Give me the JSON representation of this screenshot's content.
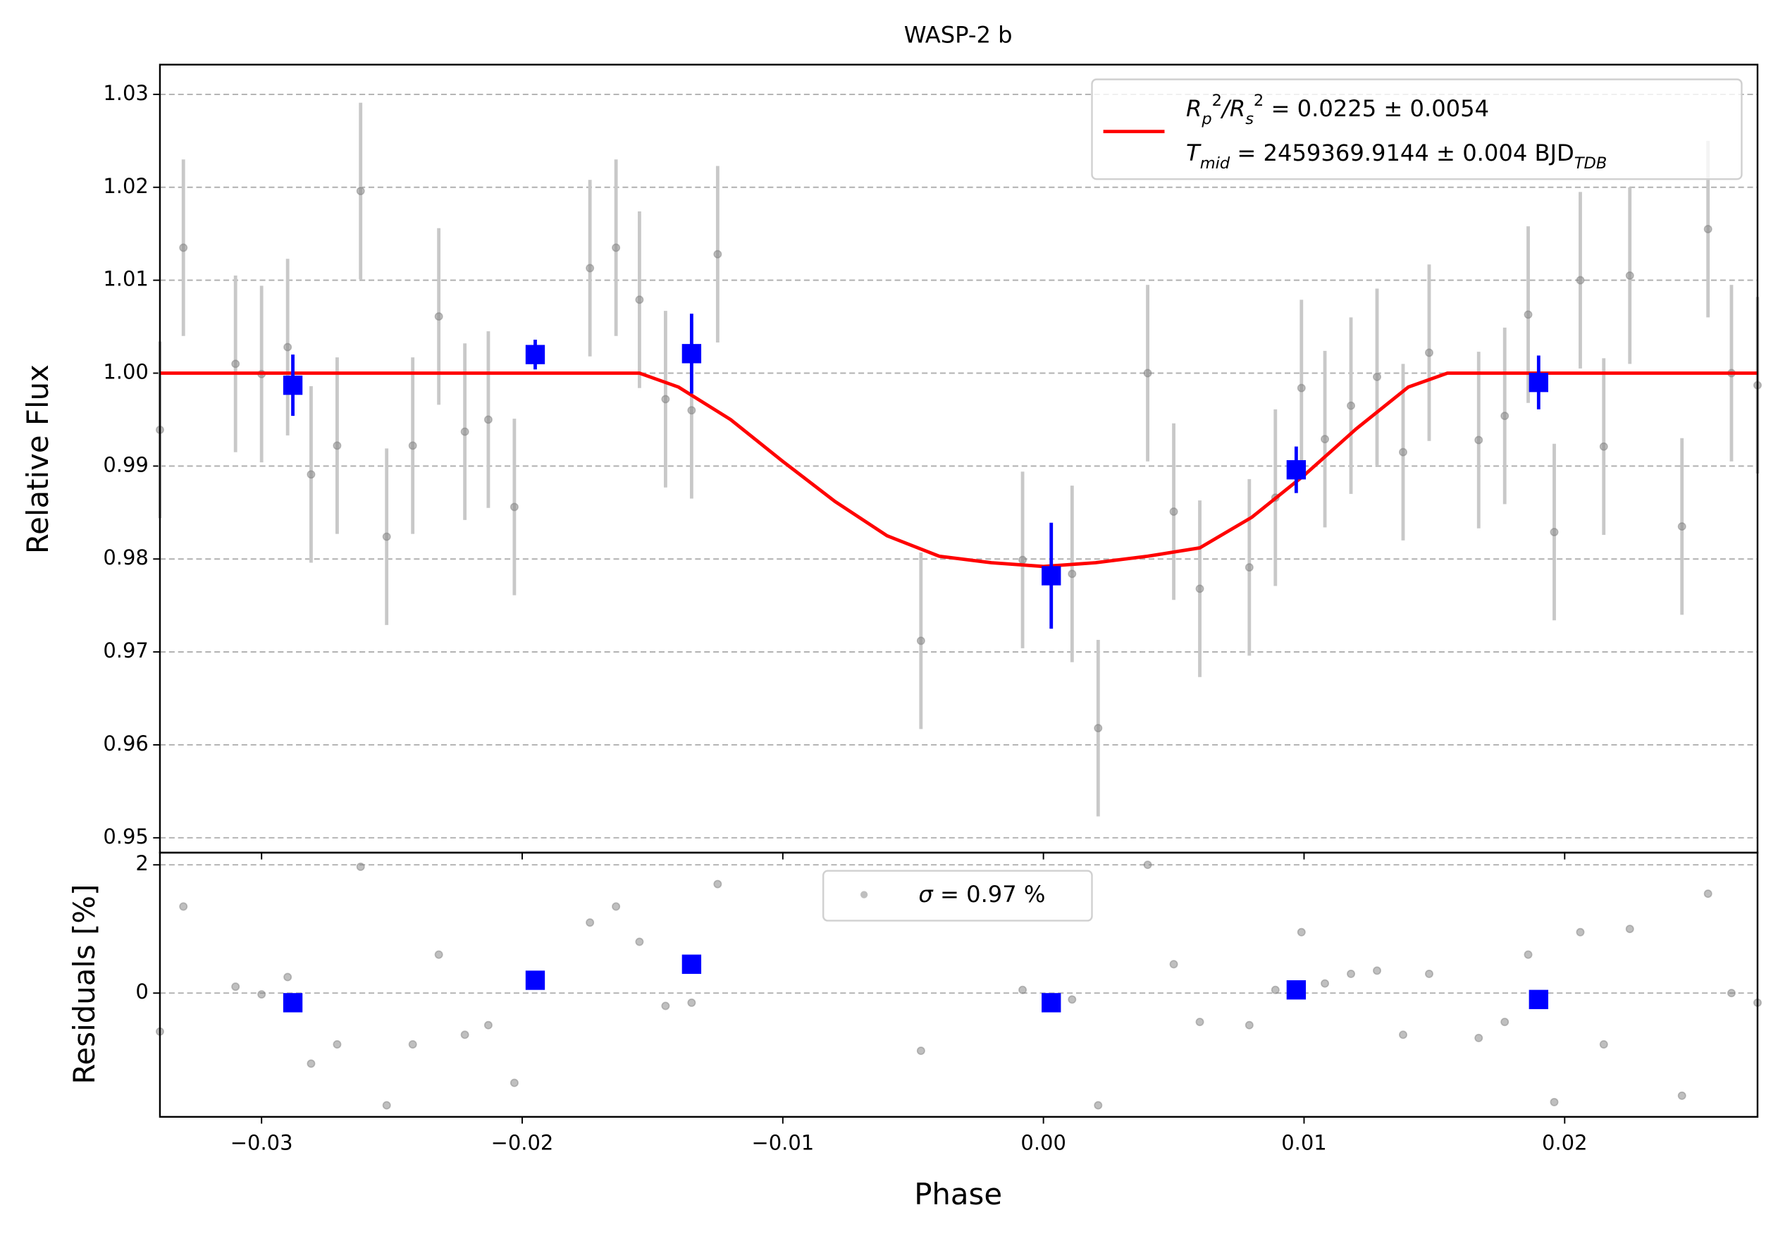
{
  "chart_data": [
    {
      "type": "errorbar",
      "title": "WASP-2 b",
      "y_label": "Relative Flux",
      "xlim": [
        -0.0339,
        0.0274
      ],
      "xticks": [
        -0.03,
        -0.02,
        -0.01,
        0,
        0.01,
        0.02
      ],
      "ylim": [
        0.9484,
        1.0332
      ],
      "yticks": [
        0.95,
        0.96,
        0.97,
        0.98,
        0.99,
        {
          "value": 1,
          "label": "1.00"
        },
        1.01,
        1.02,
        1.03
      ],
      "grid": true,
      "series": [
        {
          "mark": "point",
          "color": "#808080",
          "errorcolor": "#c8c8c8",
          "error": 0.0095,
          "x": [
            -0.0339,
            -0.033,
            -0.031,
            -0.03,
            -0.029,
            -0.0281,
            -0.0271,
            -0.0262,
            -0.0252,
            -0.0242,
            -0.0232,
            -0.0222,
            -0.0213,
            -0.0203,
            -0.0174,
            -0.0164,
            -0.0155,
            -0.0145,
            -0.0135,
            -0.0125,
            -0.0047,
            -0.0008,
            0.0011,
            0.0021,
            0.004,
            0.005,
            0.006,
            0.0079,
            0.0089,
            0.0099,
            0.0108,
            0.0118,
            0.0128,
            0.0138,
            0.0148,
            0.0167,
            0.0177,
            0.0186,
            0.0196,
            0.0206,
            0.0215,
            0.0225,
            0.0245,
            0.0255,
            0.0264,
            0.0274
          ],
          "values": [
            0.9939,
            1.0135,
            1.001,
            0.9999,
            1.0028,
            0.9891,
            0.9922,
            1.0196,
            0.9824,
            0.9922,
            1.0061,
            0.9937,
            0.995,
            0.9856,
            1.0113,
            1.0135,
            1.0079,
            0.9972,
            0.996,
            1.0128,
            0.9712,
            0.9799,
            0.9784,
            0.9618,
            1.0,
            0.9851,
            0.9768,
            0.9791,
            0.9866,
            0.9984,
            0.9929,
            0.9965,
            0.9996,
            0.9915,
            1.0022,
            0.9928,
            0.9954,
            1.0063,
            0.9829,
            1.01,
            0.9921,
            1.0105,
            0.9835,
            1.0155,
            1.0,
            0.9987
          ]
        },
        {
          "mark": "line",
          "color": "#ff0000",
          "x": [
            -0.0339,
            -0.0155,
            -0.014,
            -0.012,
            -0.01,
            -0.008,
            -0.006,
            -0.004,
            -0.002,
            0,
            0.002,
            0.004,
            0.006,
            0.008,
            0.01,
            0.012,
            0.014,
            0.0155,
            0.0274
          ],
          "values": [
            1,
            1,
            0.9985,
            0.995,
            0.9905,
            0.9862,
            0.9825,
            0.9803,
            0.9796,
            0.9792,
            0.9796,
            0.9803,
            0.9812,
            0.9845,
            0.989,
            0.994,
            0.9985,
            1,
            1
          ],
          "legend_lines": [
            [
              {
                "text": "R",
                "style": "italic"
              },
              {
                "text": "p",
                "style": "sub"
              },
              {
                "text": "2",
                "style": "sup"
              },
              {
                "text": "/",
                "style": "italic"
              },
              {
                "text": "R",
                "style": "italic"
              },
              {
                "text": "s",
                "style": "sub"
              },
              {
                "text": "2",
                "style": "sup"
              },
              {
                "text": " = 0.0225 ± 0.0054",
                "style": "normal"
              }
            ],
            [
              {
                "text": "T",
                "style": "italic"
              },
              {
                "text": "mid",
                "style": "sub"
              },
              {
                "text": " = 2459369.9144 ± 0.004 BJD",
                "style": "normal"
              },
              {
                "text": "TDB",
                "style": "sub"
              }
            ]
          ]
        },
        {
          "mark": "square",
          "color": "#0000ff",
          "errorcolor": "#0000ff",
          "x": [
            -0.0288,
            -0.0195,
            -0.0135,
            0.0003,
            0.0097,
            0.019
          ],
          "values": [
            0.9987,
            1.002,
            1.0021,
            0.9782,
            0.9896,
            0.999
          ],
          "errors": [
            0.0033,
            0.0016,
            0.0043,
            0.0057,
            0.0025,
            0.0029
          ]
        }
      ]
    },
    {
      "type": "scatter",
      "y_label": "Residuals [%]",
      "x_label": "Phase",
      "xlim": [
        -0.0339,
        0.0274
      ],
      "xticks": [
        {
          "value": -0.03,
          "label": "−0.03"
        },
        {
          "value": -0.02,
          "label": "−0.02"
        },
        {
          "value": -0.01,
          "label": "−0.01"
        },
        {
          "value": 0,
          "label": "0.00"
        },
        0.01,
        0.02
      ],
      "ylim": [
        -1.93,
        2.19
      ],
      "yticks": [
        0,
        2
      ],
      "grid": true,
      "series": [
        {
          "mark": "point",
          "color": "#808080",
          "legend_parts": [
            {
              "text": "σ",
              "style": "italic"
            },
            {
              "text": " = 0.97 %",
              "style": "normal"
            }
          ],
          "x": [
            -0.0339,
            -0.033,
            -0.031,
            -0.03,
            -0.029,
            -0.0281,
            -0.0271,
            -0.0262,
            -0.0252,
            -0.0242,
            -0.0232,
            -0.0222,
            -0.0213,
            -0.0203,
            -0.0174,
            -0.0164,
            -0.0155,
            -0.0145,
            -0.0135,
            -0.0125,
            -0.0047,
            -0.0008,
            0.0011,
            0.0021,
            0.004,
            0.005,
            0.006,
            0.0079,
            0.0089,
            0.0099,
            0.0108,
            0.0118,
            0.0128,
            0.0138,
            0.0148,
            0.0167,
            0.0177,
            0.0186,
            0.0196,
            0.0206,
            0.0215,
            0.0225,
            0.0245,
            0.0255,
            0.0264,
            0.0274
          ],
          "values": [
            -0.6,
            1.35,
            0.1,
            -0.02,
            0.25,
            -1.1,
            -0.8,
            1.97,
            -1.75,
            -0.8,
            0.6,
            -0.65,
            -0.5,
            -1.4,
            1.1,
            1.35,
            0.8,
            -0.2,
            -0.15,
            1.7,
            -0.9,
            0.05,
            -0.1,
            -1.75,
            2.0,
            0.45,
            -0.45,
            -0.5,
            0.05,
            0.95,
            0.15,
            0.3,
            0.35,
            -0.65,
            0.3,
            -0.7,
            -0.45,
            0.6,
            -1.7,
            0.95,
            -0.8,
            1.0,
            -1.6,
            1.55,
            0,
            -0.15
          ]
        },
        {
          "mark": "square",
          "color": "#0000ff",
          "x": [
            -0.0288,
            -0.0195,
            -0.0135,
            0.0003,
            0.0097,
            0.019
          ],
          "values": [
            -0.15,
            0.2,
            0.45,
            -0.15,
            0.05,
            -0.1
          ]
        }
      ]
    }
  ]
}
